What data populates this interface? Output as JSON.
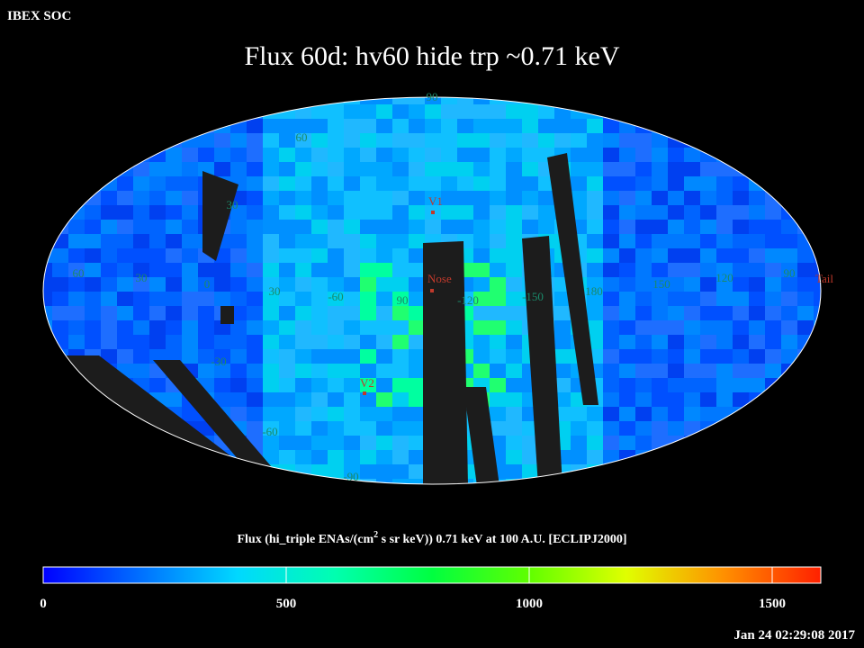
{
  "header": {
    "app": "IBEX SOC",
    "timestamp": "Jan 24 02:29:08 2017"
  },
  "title": "Flux   60d: hv60 hide trp ~0.71 keV",
  "map": {
    "latitude_labels": [
      "90",
      "60",
      "30",
      "-30",
      "-60",
      "-90"
    ],
    "longitude_labels": [
      "60",
      "30",
      "0",
      "30",
      "-60",
      "90",
      "-120",
      "-150",
      "180",
      "150",
      "120",
      "90"
    ],
    "markers": [
      "V1",
      "Nose",
      "V2",
      "Tail"
    ]
  },
  "colorbar": {
    "label_parts": [
      "Flux (hi_triple ENAs/(cm",
      "2",
      " s sr keV))  0.71 keV at 100 A.U. [ECLIPJ2000]"
    ],
    "lim": [
      0,
      1600
    ],
    "ticks": [
      0,
      500,
      1000,
      1500
    ],
    "colors": [
      "#0000ff",
      "#0070ff",
      "#00d8ff",
      "#00ffb0",
      "#00ff40",
      "#60ff00",
      "#e0ff00",
      "#ff9000",
      "#ff2000"
    ]
  }
}
